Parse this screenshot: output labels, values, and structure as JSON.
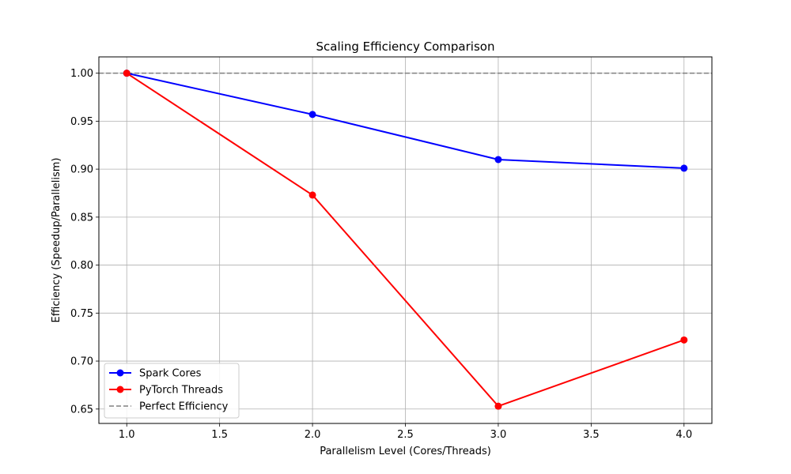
{
  "chart_data": {
    "type": "line",
    "title": "Scaling Efficiency Comparison",
    "xlabel": "Parallelism Level (Cores/Threads)",
    "ylabel": "Efficiency (Speedup/Parallelism)",
    "xlim": [
      0.85,
      4.15
    ],
    "ylim": [
      0.635,
      1.017
    ],
    "xticks": [
      "1.0",
      "1.5",
      "2.0",
      "2.5",
      "3.0",
      "3.5",
      "4.0"
    ],
    "yticks": [
      "0.65",
      "0.70",
      "0.75",
      "0.80",
      "0.85",
      "0.90",
      "0.95",
      "1.00"
    ],
    "grid": true,
    "legend_position": "lower-left",
    "x": [
      1,
      2,
      3,
      4
    ],
    "series": [
      {
        "name": "Spark Cores",
        "color": "#0000ff",
        "style": "solid",
        "marker": "circle",
        "values": [
          1.0,
          0.957,
          0.91,
          0.901
        ]
      },
      {
        "name": "PyTorch Threads",
        "color": "#ff0000",
        "style": "solid",
        "marker": "circle",
        "values": [
          1.0,
          0.873,
          0.653,
          0.722
        ]
      },
      {
        "name": "Perfect Efficiency",
        "color": "#808080",
        "style": "dashed",
        "marker": "none",
        "values": [
          1.0,
          1.0,
          1.0,
          1.0
        ]
      }
    ]
  }
}
